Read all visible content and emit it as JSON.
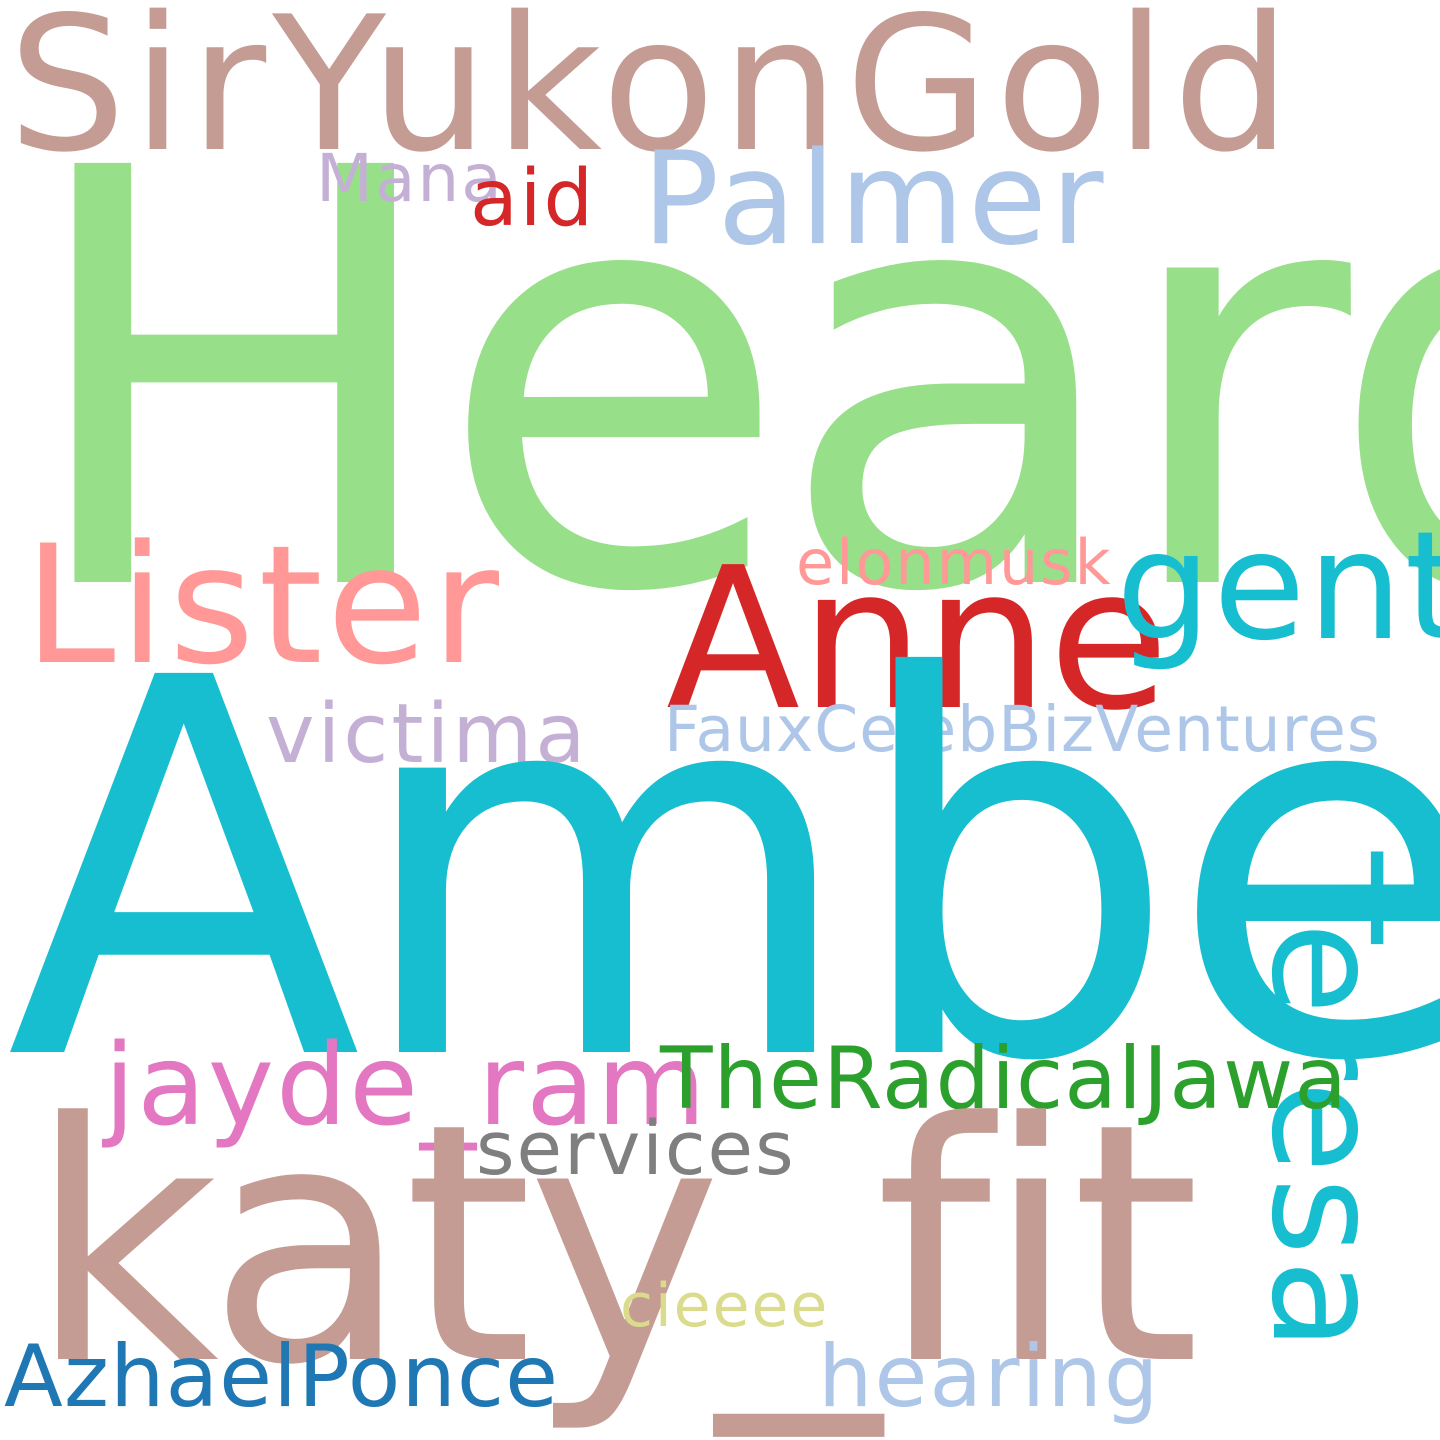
{
  "words": [
    {
      "text": "SirYukonGold",
      "color": "#c49c94"
    },
    {
      "text": "Heard",
      "color": "#98df8a"
    },
    {
      "text": "Palmer",
      "color": "#aec7e8"
    },
    {
      "text": "Mana",
      "color": "#c5b0d5"
    },
    {
      "text": "aid",
      "color": "#d62728"
    },
    {
      "text": "Lister",
      "color": "#ff9896"
    },
    {
      "text": "Anne",
      "color": "#d62728"
    },
    {
      "text": "gent",
      "color": "#17becf"
    },
    {
      "text": "elonmusk",
      "color": "#ff9896"
    },
    {
      "text": "victima",
      "color": "#c5b0d5"
    },
    {
      "text": "FauxCelebBizVentures",
      "color": "#aec7e8"
    },
    {
      "text": "Amber",
      "color": "#17becf"
    },
    {
      "text": "Teresa",
      "color": "#17becf"
    },
    {
      "text": "jayde_ram",
      "color": "#e377c2"
    },
    {
      "text": "TheRadicalJawa",
      "color": "#2ca02c"
    },
    {
      "text": "services",
      "color": "#7f7f7f"
    },
    {
      "text": "katy_fit",
      "color": "#c49c94"
    },
    {
      "text": "cieeee",
      "color": "#dbdb8d"
    },
    {
      "text": "AzhaelPonce",
      "color": "#1f77b4"
    },
    {
      "text": "hearing",
      "color": "#aec7e8"
    }
  ]
}
